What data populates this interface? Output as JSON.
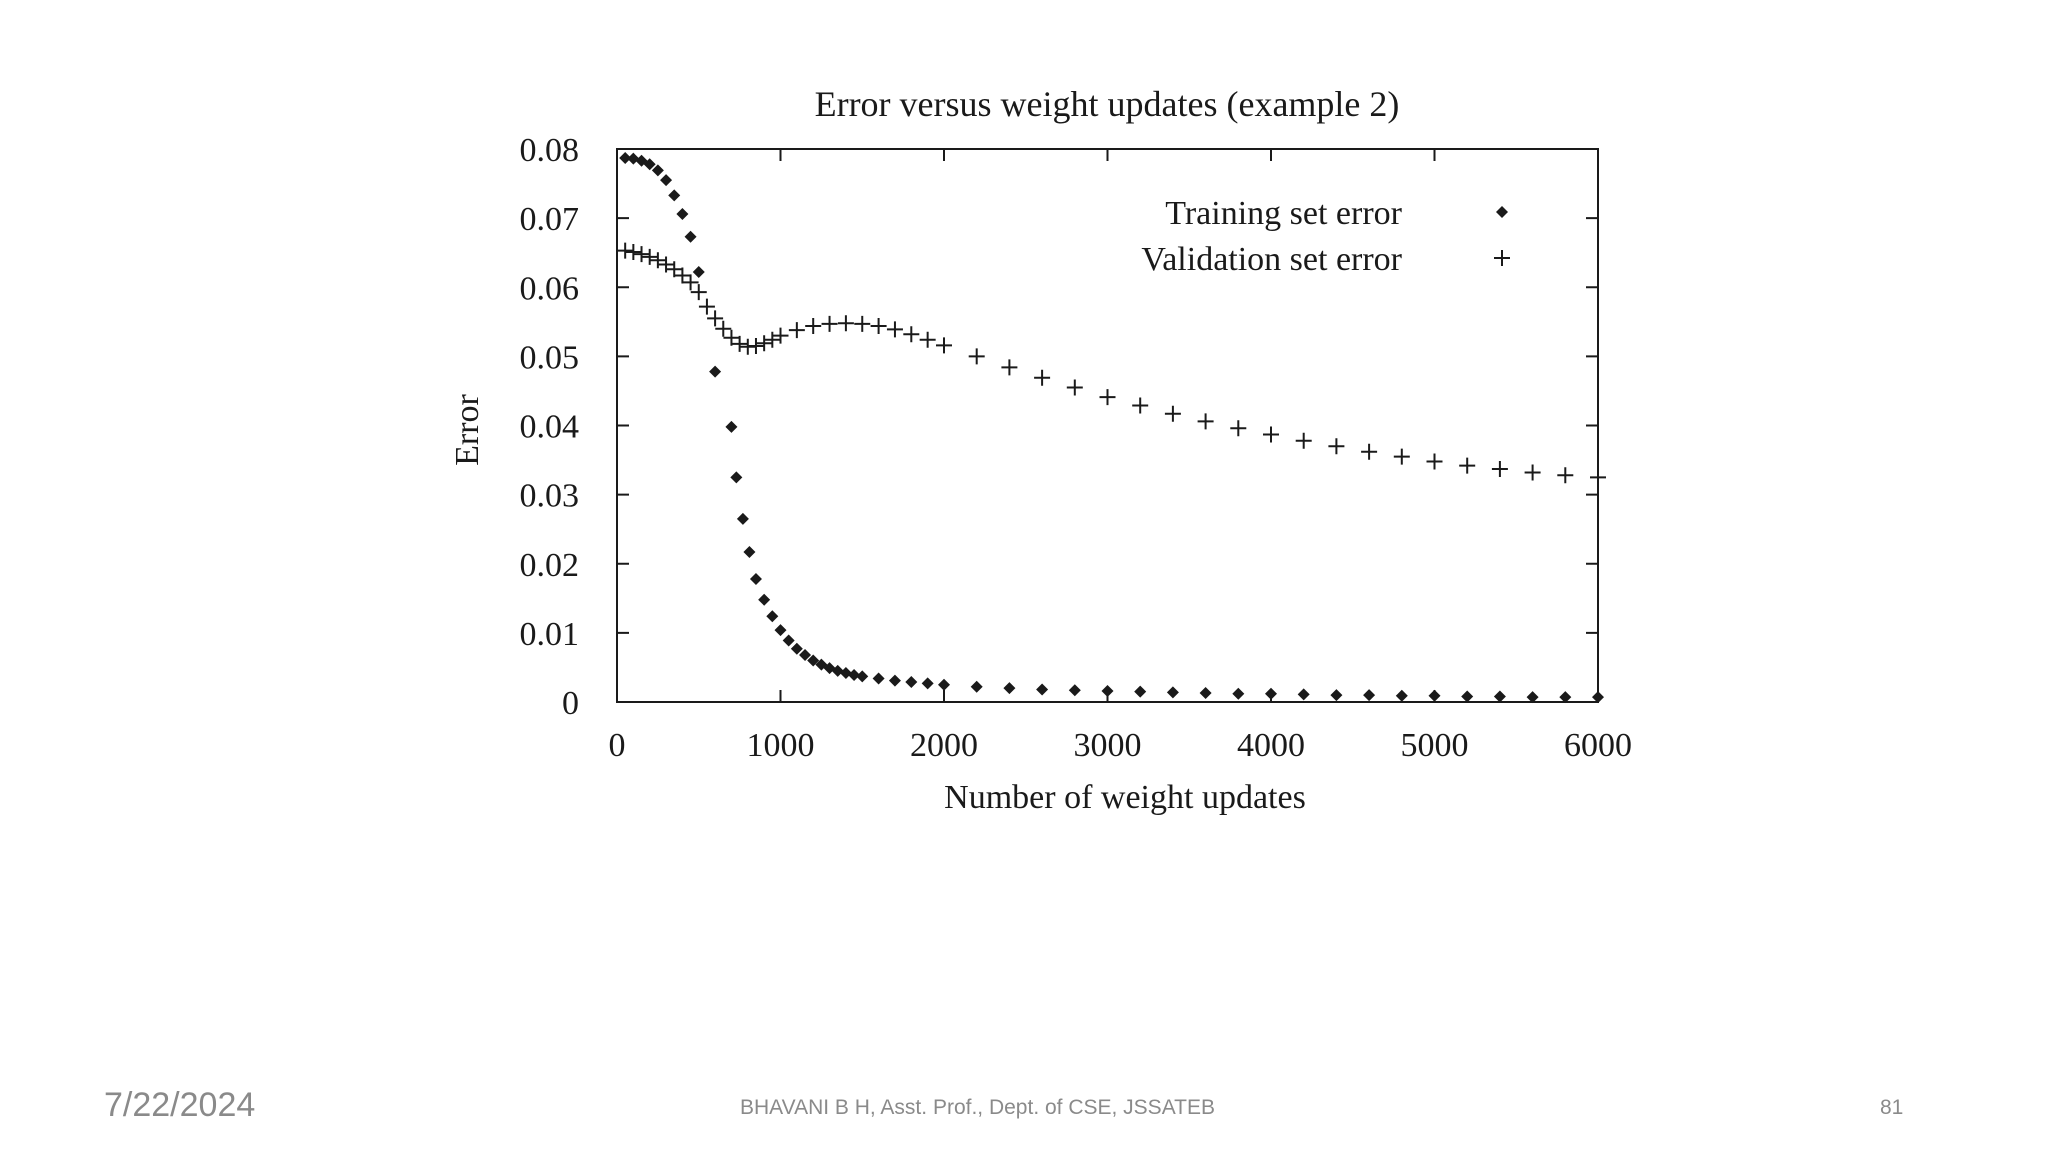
{
  "chart_data": {
    "type": "scatter",
    "title": "Error versus weight updates (example 2)",
    "xlabel": "Number of weight updates",
    "ylabel": "Error",
    "xlim": [
      0,
      6000
    ],
    "ylim": [
      0,
      0.08
    ],
    "x_ticks": [
      "0",
      "1000",
      "2000",
      "3000",
      "4000",
      "5000",
      "6000"
    ],
    "y_ticks": [
      "0",
      "0.01",
      "0.02",
      "0.03",
      "0.04",
      "0.05",
      "0.06",
      "0.07",
      "0.08"
    ],
    "legend_position": "top-right",
    "series": [
      {
        "name": "Training set error",
        "marker": "diamond",
        "points": [
          [
            50,
            0.0787
          ],
          [
            100,
            0.0786
          ],
          [
            150,
            0.0783
          ],
          [
            200,
            0.0778
          ],
          [
            250,
            0.0769
          ],
          [
            300,
            0.0755
          ],
          [
            350,
            0.0733
          ],
          [
            400,
            0.0706
          ],
          [
            450,
            0.0673
          ],
          [
            500,
            0.0622
          ],
          [
            600,
            0.0478
          ],
          [
            700,
            0.0398
          ],
          [
            730,
            0.0325
          ],
          [
            770,
            0.0265
          ],
          [
            810,
            0.0217
          ],
          [
            850,
            0.0178
          ],
          [
            900,
            0.0148
          ],
          [
            950,
            0.0124
          ],
          [
            1000,
            0.0104
          ],
          [
            1050,
            0.0089
          ],
          [
            1100,
            0.0077
          ],
          [
            1150,
            0.0068
          ],
          [
            1200,
            0.006
          ],
          [
            1250,
            0.0054
          ],
          [
            1300,
            0.0049
          ],
          [
            1350,
            0.0045
          ],
          [
            1400,
            0.0042
          ],
          [
            1450,
            0.0039
          ],
          [
            1500,
            0.0037
          ],
          [
            1600,
            0.0034
          ],
          [
            1700,
            0.0031
          ],
          [
            1800,
            0.0029
          ],
          [
            1900,
            0.0027
          ],
          [
            2000,
            0.0025
          ],
          [
            2200,
            0.0022
          ],
          [
            2400,
            0.002
          ],
          [
            2600,
            0.0018
          ],
          [
            2800,
            0.0017
          ],
          [
            3000,
            0.0016
          ],
          [
            3200,
            0.0015
          ],
          [
            3400,
            0.0014
          ],
          [
            3600,
            0.0013
          ],
          [
            3800,
            0.0012
          ],
          [
            4000,
            0.0012
          ],
          [
            4200,
            0.0011
          ],
          [
            4400,
            0.001
          ],
          [
            4600,
            0.001
          ],
          [
            4800,
            0.0009
          ],
          [
            5000,
            0.0009
          ],
          [
            5200,
            0.0008
          ],
          [
            5400,
            0.0008
          ],
          [
            5600,
            0.0007
          ],
          [
            5800,
            0.0007
          ],
          [
            6000,
            0.0007
          ]
        ]
      },
      {
        "name": "Validation set error",
        "marker": "plus",
        "points": [
          [
            50,
            0.0653
          ],
          [
            100,
            0.0651
          ],
          [
            150,
            0.0648
          ],
          [
            200,
            0.0644
          ],
          [
            250,
            0.0639
          ],
          [
            300,
            0.0633
          ],
          [
            350,
            0.0626
          ],
          [
            400,
            0.0617
          ],
          [
            450,
            0.0607
          ],
          [
            500,
            0.0593
          ],
          [
            550,
            0.0572
          ],
          [
            600,
            0.0555
          ],
          [
            650,
            0.054
          ],
          [
            700,
            0.0527
          ],
          [
            750,
            0.0518
          ],
          [
            800,
            0.0514
          ],
          [
            850,
            0.0515
          ],
          [
            900,
            0.0519
          ],
          [
            950,
            0.0524
          ],
          [
            1000,
            0.053
          ],
          [
            1100,
            0.0538
          ],
          [
            1200,
            0.0544
          ],
          [
            1300,
            0.0547
          ],
          [
            1400,
            0.0548
          ],
          [
            1500,
            0.0547
          ],
          [
            1600,
            0.0544
          ],
          [
            1700,
            0.0539
          ],
          [
            1800,
            0.0532
          ],
          [
            1900,
            0.0524
          ],
          [
            2000,
            0.0516
          ],
          [
            2200,
            0.05
          ],
          [
            2400,
            0.0484
          ],
          [
            2600,
            0.0469
          ],
          [
            2800,
            0.0455
          ],
          [
            3000,
            0.0441
          ],
          [
            3200,
            0.0429
          ],
          [
            3400,
            0.0417
          ],
          [
            3600,
            0.0406
          ],
          [
            3800,
            0.0396
          ],
          [
            4000,
            0.0387
          ],
          [
            4200,
            0.0378
          ],
          [
            4400,
            0.037
          ],
          [
            4600,
            0.0362
          ],
          [
            4800,
            0.0355
          ],
          [
            5000,
            0.0348
          ],
          [
            5200,
            0.0342
          ],
          [
            5400,
            0.0337
          ],
          [
            5600,
            0.0332
          ],
          [
            5800,
            0.0328
          ],
          [
            6000,
            0.0325
          ]
        ]
      }
    ]
  },
  "footer": {
    "date": "7/22/2024",
    "author": "BHAVANI B H, Asst. Prof., Dept. of CSE, JSSATEB",
    "page": "81"
  },
  "colors": {
    "ink": "#1a1a1a",
    "footer": "#8a8a8a"
  }
}
